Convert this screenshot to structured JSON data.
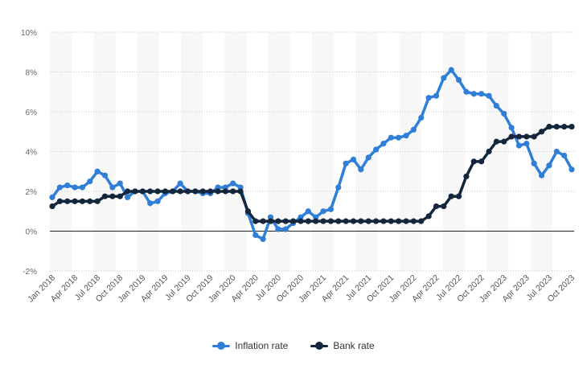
{
  "chart_data": {
    "type": "line",
    "title": "",
    "xlabel": "",
    "ylabel": "",
    "ylim": [
      -2,
      10
    ],
    "y_ticks": [
      -2,
      0,
      2,
      4,
      6,
      8,
      10
    ],
    "y_tick_labels": [
      "-2%",
      "0%",
      "2%",
      "4%",
      "6%",
      "8%",
      "10%"
    ],
    "x_tick_labels": [
      "Jan 2018",
      "Apr 2018",
      "Jul 2018",
      "Oct 2018",
      "Jan 2019",
      "Apr 2019",
      "Jul 2019",
      "Oct 2019",
      "Jan 2020",
      "Apr 2020",
      "Jul 2020",
      "Oct 2020",
      "Jan 2021",
      "Apr 2021",
      "Jul 2021",
      "Oct 2021",
      "Jan 2022",
      "Apr 2022",
      "Jul 2022",
      "Oct 2022",
      "Jan 2023",
      "Apr 2023",
      "Jul 2023",
      "Oct 2023"
    ],
    "x_start": "2018-01",
    "x_end": "2023-10",
    "grid": "horizontal-dotted",
    "legend_position": "bottom",
    "series": [
      {
        "name": "Inflation rate",
        "color": "#2f7ed8",
        "values": [
          1.7,
          2.2,
          2.3,
          2.2,
          2.2,
          2.5,
          3.0,
          2.8,
          2.2,
          2.4,
          1.7,
          2.0,
          2.0,
          1.4,
          1.5,
          1.9,
          2.0,
          2.4,
          2.0,
          2.0,
          1.9,
          1.9,
          2.2,
          2.2,
          2.4,
          2.2,
          0.9,
          -0.2,
          -0.4,
          0.7,
          0.1,
          0.1,
          0.4,
          0.7,
          1.0,
          0.7,
          1.0,
          1.1,
          2.2,
          3.4,
          3.6,
          3.1,
          3.7,
          4.1,
          4.4,
          4.7,
          4.7,
          4.8,
          5.1,
          5.7,
          6.7,
          6.8,
          7.7,
          8.1,
          7.6,
          7.0,
          6.9,
          6.9,
          6.8,
          6.3,
          5.9,
          5.2,
          4.3,
          4.4,
          3.4,
          2.8,
          3.3,
          4.0,
          3.8,
          3.1
        ]
      },
      {
        "name": "Bank rate",
        "color": "#13263c",
        "values": [
          1.25,
          1.5,
          1.5,
          1.5,
          1.5,
          1.5,
          1.5,
          1.75,
          1.75,
          1.75,
          2.0,
          2.0,
          2.0,
          2.0,
          2.0,
          2.0,
          2.0,
          2.0,
          2.0,
          2.0,
          2.0,
          2.0,
          2.0,
          2.0,
          2.0,
          2.0,
          1.0,
          0.5,
          0.5,
          0.5,
          0.5,
          0.5,
          0.5,
          0.5,
          0.5,
          0.5,
          0.5,
          0.5,
          0.5,
          0.5,
          0.5,
          0.5,
          0.5,
          0.5,
          0.5,
          0.5,
          0.5,
          0.5,
          0.5,
          0.5,
          0.75,
          1.25,
          1.25,
          1.75,
          1.75,
          2.75,
          3.5,
          3.5,
          4.0,
          4.5,
          4.5,
          4.75,
          4.75,
          4.75,
          4.75,
          5.0,
          5.25,
          5.25,
          5.25,
          5.25
        ]
      }
    ]
  }
}
